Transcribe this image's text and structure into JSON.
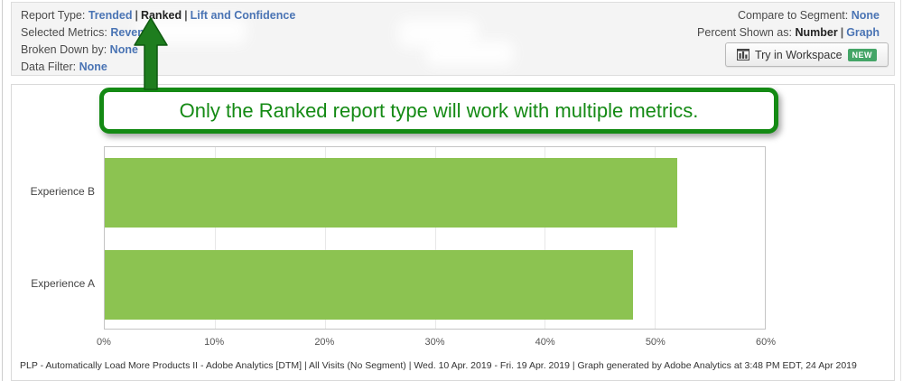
{
  "header": {
    "report_type": {
      "label": "Report Type:",
      "trended": "Trended",
      "sep": "|",
      "ranked": "Ranked",
      "lift": "Lift and Confidence"
    },
    "selected_metrics": {
      "label": "Selected Metrics:",
      "value": "Revenue"
    },
    "broken_down_by": {
      "label": "Broken Down by:",
      "value": "None"
    },
    "data_filter": {
      "label": "Data Filter:",
      "value": "None"
    },
    "compare_segment": {
      "label": "Compare to Segment:",
      "value": "None"
    },
    "percent_shown": {
      "label": "Percent Shown as:",
      "number": "Number",
      "sep": "|",
      "graph": "Graph"
    },
    "workspace_button": {
      "label": "Try in Workspace",
      "badge": "NEW"
    }
  },
  "callout": {
    "text": "Only the Ranked report type will work with multiple metrics."
  },
  "chart_data": {
    "type": "bar",
    "orientation": "horizontal",
    "categories": [
      "Experience B",
      "Experience A"
    ],
    "values": [
      52,
      48
    ],
    "value_unit": "percent",
    "xlim": [
      0,
      60
    ],
    "x_tick_labels": [
      "0%",
      "10%",
      "20%",
      "30%",
      "40%",
      "50%",
      "60%"
    ],
    "grid": true,
    "legend": false,
    "bar_color": "#8cc351"
  },
  "footer": {
    "text": "PLP - Automatically Load More Products II - Adobe Analytics [DTM] | All Visits (No Segment) | Wed. 10 Apr. 2019 - Fri. 19 Apr. 2019 | Graph generated by Adobe Analytics at 3:48 PM EDT, 24 Apr 2019"
  },
  "colors": {
    "link_blue": "#4a74b4",
    "callout_green": "#148a14",
    "arrow_green": "#1e7d1e",
    "bar_green": "#8cc351",
    "badge_green": "#44a567"
  }
}
